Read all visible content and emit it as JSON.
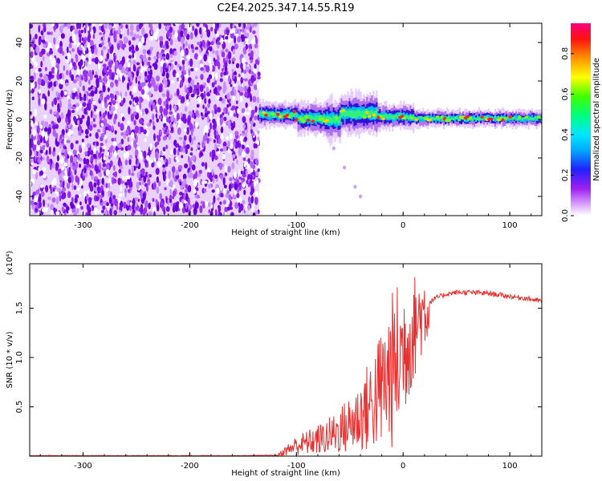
{
  "title": "C2E4.2025.347.14.55.R19",
  "chart_data": [
    {
      "type": "heatmap",
      "panel": "top",
      "xlabel": "Height of straight line (km)",
      "ylabel": "Frequency (Hz)",
      "xlim": [
        -350,
        130
      ],
      "ylim": [
        -50,
        50
      ],
      "xticks": [
        -300,
        -200,
        -100,
        0,
        100
      ],
      "xtick_labels": [
        "-300",
        "-200",
        "-100",
        "0",
        "100"
      ],
      "yticks": [
        -40,
        -20,
        0,
        20,
        40
      ],
      "ytick_labels": [
        "-40",
        "-20",
        "0",
        "20",
        "40"
      ],
      "noise_region_x": [
        -350,
        -135
      ],
      "signal_band": {
        "center_hz": 1,
        "segments": [
          {
            "x_start": -135,
            "x_end": -100,
            "center_hz": 2.5,
            "halfwidth_hz": 3.0
          },
          {
            "x_start": -100,
            "x_end": -75,
            "center_hz": 0.5,
            "halfwidth_hz": 4.0
          },
          {
            "x_start": -75,
            "x_end": -60,
            "center_hz": 0,
            "halfwidth_hz": 5.0
          },
          {
            "x_start": -60,
            "x_end": -25,
            "center_hz": 3,
            "halfwidth_hz": 5.0
          },
          {
            "x_start": -25,
            "x_end": 10,
            "center_hz": 1.5,
            "halfwidth_hz": 3.0
          },
          {
            "x_start": 10,
            "x_end": 130,
            "center_hz": 0.5,
            "halfwidth_hz": 2.0
          }
        ],
        "tail": [
          [
            -70,
            -8
          ],
          [
            -65,
            -15
          ],
          [
            -55,
            -25
          ],
          [
            -45,
            -35
          ],
          [
            -40,
            -40
          ]
        ]
      },
      "colorbar": {
        "label": "Normalized spectral amplitude",
        "range": [
          0,
          0.95
        ],
        "ticks": [
          0.0,
          0.2,
          0.4,
          0.6,
          0.8
        ],
        "tick_labels": [
          "0.0",
          "0.2",
          "0.4",
          "0.6",
          "0.8"
        ],
        "colors": [
          "#ffffff",
          "#a020f0",
          "#0000ff",
          "#00e5ff",
          "#00ff40",
          "#ffff00",
          "#ff8000",
          "#ff0000",
          "#ff0080"
        ]
      }
    },
    {
      "type": "line",
      "panel": "bottom",
      "xlabel": "Height of straight line (km)",
      "ylabel": "SNR (10 * v/v)",
      "y_multiplier": "(x10⁴)",
      "xlim": [
        -350,
        130
      ],
      "ylim": [
        0,
        1.95
      ],
      "xticks": [
        -300,
        -200,
        -100,
        0,
        100
      ],
      "xtick_labels": [
        "-300",
        "-200",
        "-100",
        "0",
        "100"
      ],
      "yticks": [
        0.5,
        1.0,
        1.5
      ],
      "ytick_labels": [
        "0.5",
        "1.0",
        "1.5"
      ],
      "series": [
        {
          "name": "SNR",
          "color": "#e83030",
          "x": [
            -350,
            -300,
            -250,
            -200,
            -150,
            -118,
            -110,
            -100,
            -90,
            -80,
            -70,
            -60,
            -50,
            -40,
            -30,
            -20,
            -10,
            -5,
            0,
            5,
            10,
            15,
            20,
            30,
            40,
            50,
            60,
            80,
            100,
            115,
            130
          ],
          "y": [
            0.005,
            0.005,
            0.005,
            0.005,
            0.005,
            0.01,
            0.06,
            0.12,
            0.15,
            0.18,
            0.22,
            0.28,
            0.35,
            0.45,
            0.58,
            0.75,
            0.95,
            1.05,
            1.15,
            1.25,
            1.35,
            1.45,
            1.52,
            1.6,
            1.64,
            1.66,
            1.66,
            1.65,
            1.62,
            1.6,
            1.57
          ]
        }
      ]
    }
  ]
}
